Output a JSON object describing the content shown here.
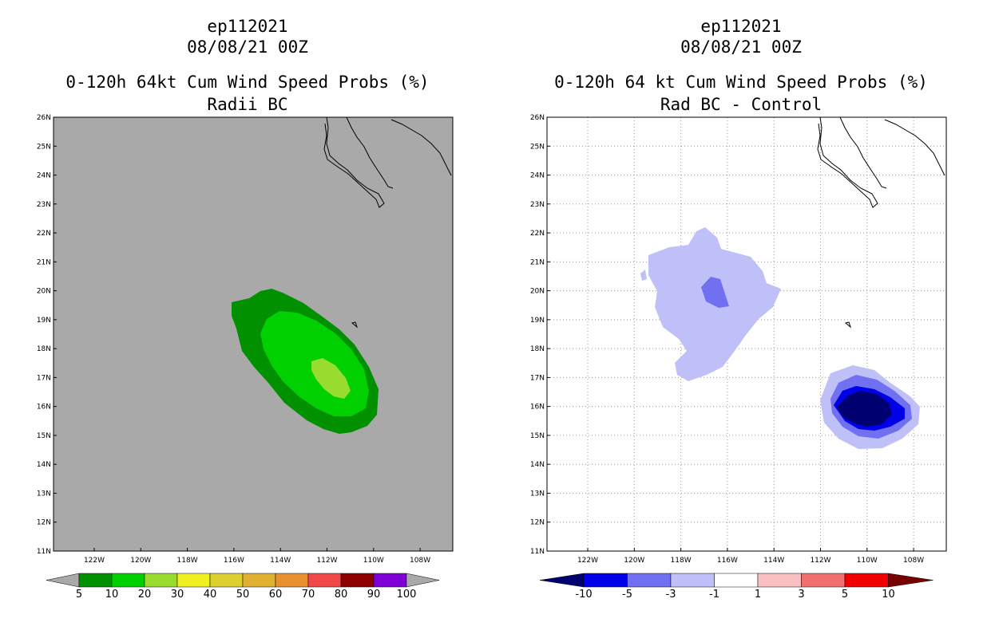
{
  "left_panel": {
    "title_line1": "ep112021",
    "title_line2": "08/08/21 00Z",
    "title_line3": "0-120h 64kt Cum Wind Speed Probs (%)",
    "title_line4": "Radii BC",
    "colorbar_labels": [
      "5",
      "10",
      "20",
      "30",
      "40",
      "50",
      "60",
      "70",
      "80",
      "90",
      "100"
    ],
    "colorbar_colors": [
      "#009000",
      "#00d000",
      "#98dc30",
      "#f0f020",
      "#dcd030",
      "#e0b030",
      "#e89030",
      "#f04848",
      "#8c0000",
      "#8000d8"
    ]
  },
  "right_panel": {
    "title_line1": "ep112021",
    "title_line2": "08/08/21 00Z",
    "title_line3": "0-120h 64 kt Cum Wind Speed Probs (%)",
    "title_line4": "Rad BC - Control",
    "colorbar_labels": [
      "-10",
      "-5",
      "-3",
      "-1",
      "1",
      "3",
      "5",
      "10"
    ],
    "colorbar_colors": [
      "#000070",
      "#0000e8",
      "#7070f0",
      "#c0c0f8",
      "#ffffff",
      "#f8c0c0",
      "#f07070",
      "#f00000",
      "#780000"
    ]
  },
  "map_axes": {
    "lat_labels": [
      "26N",
      "25N",
      "24N",
      "23N",
      "22N",
      "21N",
      "20N",
      "19N",
      "18N",
      "17N",
      "16N",
      "15N",
      "14N",
      "13N",
      "12N",
      "11N"
    ],
    "lon_labels": [
      "122W",
      "120W",
      "118W",
      "116W",
      "114W",
      "112W",
      "110W",
      "108W"
    ]
  }
}
